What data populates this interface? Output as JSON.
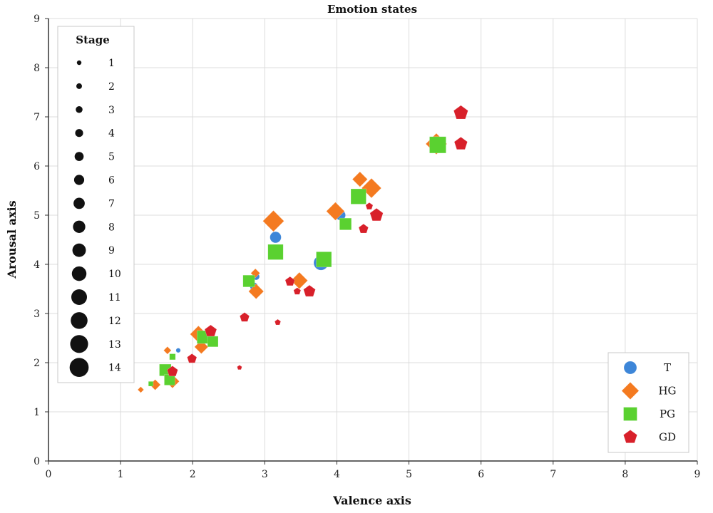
{
  "chart_data": {
    "type": "scatter",
    "title": "Emotion states",
    "xlabel": "Valence axis",
    "ylabel": "Arousal axis",
    "xlim": [
      0,
      9
    ],
    "ylim": [
      0,
      9
    ],
    "xticks": [
      "0",
      "1",
      "2",
      "3",
      "4",
      "5",
      "6",
      "7",
      "8",
      "9"
    ],
    "yticks": [
      "0",
      "1",
      "2",
      "3",
      "4",
      "5",
      "6",
      "7",
      "8",
      "9"
    ],
    "grid": true,
    "size_legend": {
      "title": "Stage",
      "placement": "top-left",
      "entries": [
        "1",
        "2",
        "3",
        "4",
        "5",
        "6",
        "7",
        "8",
        "9",
        "10",
        "11",
        "12",
        "13",
        "14"
      ]
    },
    "legend_placement": "bottom-right",
    "series": [
      {
        "name": "T",
        "color": "#3d86d8",
        "marker": "circle",
        "points": [
          {
            "x": 1.8,
            "y": 2.25,
            "stage": 1
          },
          {
            "x": 2.88,
            "y": 3.75,
            "stage": 3
          },
          {
            "x": 2.85,
            "y": 3.55,
            "stage": 4
          },
          {
            "x": 3.15,
            "y": 4.55,
            "stage": 7
          },
          {
            "x": 4.05,
            "y": 5.0,
            "stage": 6
          },
          {
            "x": 3.78,
            "y": 4.03,
            "stage": 10
          }
        ]
      },
      {
        "name": "HG",
        "color": "#f47a20",
        "marker": "diamond",
        "points": [
          {
            "x": 1.28,
            "y": 1.45,
            "stage": 1
          },
          {
            "x": 1.48,
            "y": 1.55,
            "stage": 4
          },
          {
            "x": 1.65,
            "y": 2.25,
            "stage": 2
          },
          {
            "x": 1.72,
            "y": 1.62,
            "stage": 6
          },
          {
            "x": 2.08,
            "y": 2.58,
            "stage": 8
          },
          {
            "x": 2.12,
            "y": 2.32,
            "stage": 6
          },
          {
            "x": 2.87,
            "y": 3.82,
            "stage": 3
          },
          {
            "x": 2.88,
            "y": 3.45,
            "stage": 7
          },
          {
            "x": 3.12,
            "y": 4.88,
            "stage": 11
          },
          {
            "x": 3.48,
            "y": 3.67,
            "stage": 8
          },
          {
            "x": 3.98,
            "y": 5.08,
            "stage": 9
          },
          {
            "x": 4.32,
            "y": 5.73,
            "stage": 7
          },
          {
            "x": 4.48,
            "y": 5.55,
            "stage": 10
          },
          {
            "x": 5.38,
            "y": 6.45,
            "stage": 11
          }
        ]
      },
      {
        "name": "PG",
        "color": "#5ad130",
        "marker": "square",
        "points": [
          {
            "x": 1.42,
            "y": 1.57,
            "stage": 1
          },
          {
            "x": 1.72,
            "y": 2.12,
            "stage": 2
          },
          {
            "x": 1.62,
            "y": 1.85,
            "stage": 7
          },
          {
            "x": 1.68,
            "y": 1.65,
            "stage": 6
          },
          {
            "x": 2.15,
            "y": 2.52,
            "stage": 8
          },
          {
            "x": 2.28,
            "y": 2.43,
            "stage": 6
          },
          {
            "x": 2.78,
            "y": 3.66,
            "stage": 7
          },
          {
            "x": 3.15,
            "y": 4.25,
            "stage": 10
          },
          {
            "x": 3.82,
            "y": 4.1,
            "stage": 10
          },
          {
            "x": 4.12,
            "y": 4.82,
            "stage": 7
          },
          {
            "x": 4.3,
            "y": 5.38,
            "stage": 10
          },
          {
            "x": 5.4,
            "y": 6.43,
            "stage": 11
          }
        ]
      },
      {
        "name": "GD",
        "color": "#d8202a",
        "marker": "pentagon",
        "points": [
          {
            "x": 2.65,
            "y": 1.9,
            "stage": 1
          },
          {
            "x": 3.18,
            "y": 2.82,
            "stage": 2
          },
          {
            "x": 1.99,
            "y": 2.08,
            "stage": 5
          },
          {
            "x": 1.72,
            "y": 1.82,
            "stage": 6
          },
          {
            "x": 2.25,
            "y": 2.64,
            "stage": 7
          },
          {
            "x": 2.72,
            "y": 2.92,
            "stage": 5
          },
          {
            "x": 3.35,
            "y": 3.65,
            "stage": 5
          },
          {
            "x": 3.45,
            "y": 3.45,
            "stage": 3
          },
          {
            "x": 3.62,
            "y": 3.45,
            "stage": 7
          },
          {
            "x": 4.37,
            "y": 4.72,
            "stage": 5
          },
          {
            "x": 4.45,
            "y": 5.18,
            "stage": 3
          },
          {
            "x": 4.55,
            "y": 5.0,
            "stage": 8
          },
          {
            "x": 5.72,
            "y": 7.08,
            "stage": 9
          },
          {
            "x": 5.72,
            "y": 6.45,
            "stage": 8
          }
        ]
      }
    ]
  }
}
